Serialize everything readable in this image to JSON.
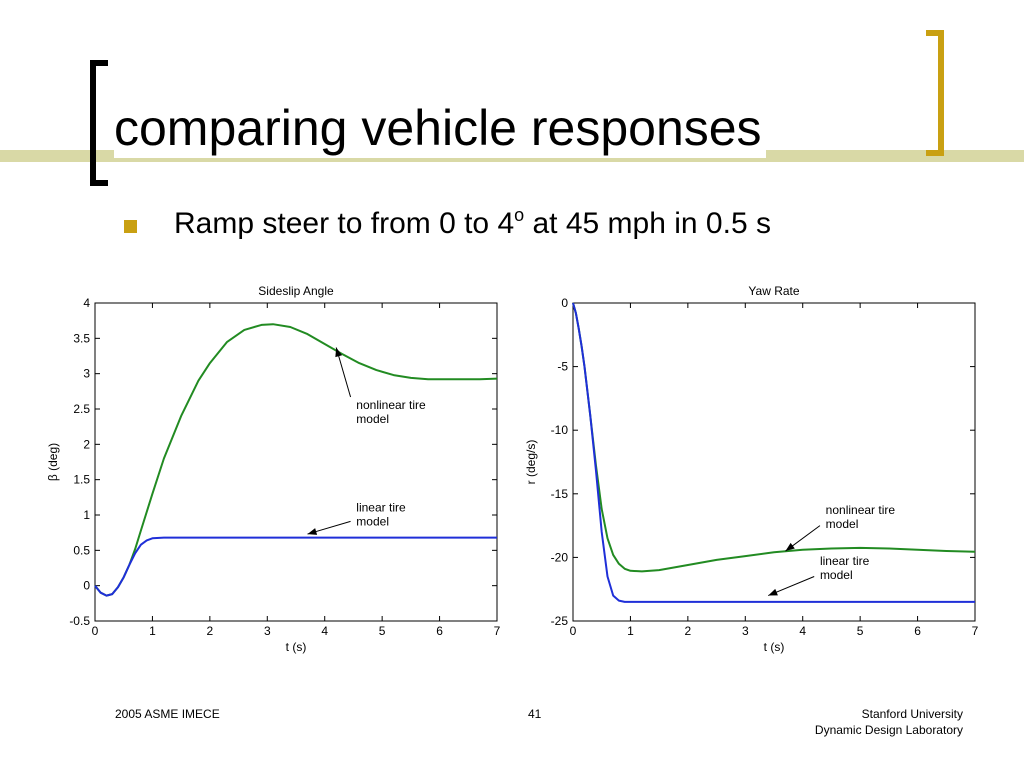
{
  "slide": {
    "title": "comparing vehicle responses",
    "bullet": {
      "text_before": "Ramp steer to from 0 to 4",
      "superscript": "o",
      "text_after": " at 45 mph in 0.5 s"
    },
    "footer": {
      "left": "2005 ASME IMECE",
      "center": "41",
      "right_line1": "Stanford University",
      "right_line2": "Dynamic Design Laboratory"
    },
    "colors": {
      "accent_gold": "#c9a012",
      "title_bar": "#d9d9a6"
    }
  },
  "chart_data": [
    {
      "type": "line",
      "title": "Sideslip Angle",
      "xlabel": "t (s)",
      "ylabel": "β (deg)",
      "xlim": [
        0,
        7
      ],
      "ylim": [
        -0.5,
        4
      ],
      "xticks": [
        "0",
        "1",
        "2",
        "3",
        "4",
        "5",
        "6",
        "7"
      ],
      "yticks": [
        "-0.5",
        "0",
        "0.5",
        "1",
        "1.5",
        "2",
        "2.5",
        "3",
        "3.5",
        "4"
      ],
      "grid": false,
      "series": [
        {
          "color": "#228b22",
          "x": [
            0,
            0.1,
            0.2,
            0.3,
            0.4,
            0.5,
            0.6,
            0.7,
            0.8,
            1.0,
            1.2,
            1.5,
            1.8,
            2.0,
            2.3,
            2.6,
            2.9,
            3.1,
            3.4,
            3.7,
            4.0,
            4.3,
            4.6,
            4.9,
            5.2,
            5.5,
            5.8,
            6.1,
            6.4,
            6.7,
            7.0
          ],
          "y": [
            0,
            -0.1,
            -0.14,
            -0.12,
            -0.02,
            0.12,
            0.3,
            0.52,
            0.78,
            1.3,
            1.8,
            2.4,
            2.9,
            3.15,
            3.45,
            3.62,
            3.69,
            3.7,
            3.66,
            3.56,
            3.42,
            3.28,
            3.15,
            3.05,
            2.98,
            2.94,
            2.92,
            2.92,
            2.92,
            2.92,
            2.93
          ]
        },
        {
          "color": "#1f2fd8",
          "x": [
            0,
            0.1,
            0.2,
            0.3,
            0.4,
            0.5,
            0.6,
            0.7,
            0.8,
            0.9,
            1.0,
            1.2,
            1.5,
            2.0,
            3.0,
            4.0,
            5.0,
            6.0,
            7.0
          ],
          "y": [
            0,
            -0.1,
            -0.14,
            -0.12,
            -0.02,
            0.12,
            0.3,
            0.46,
            0.58,
            0.64,
            0.67,
            0.68,
            0.68,
            0.68,
            0.68,
            0.68,
            0.68,
            0.68,
            0.68
          ]
        }
      ],
      "annotations": [
        {
          "text": [
            "nonlinear tire",
            "model"
          ],
          "text_x": 4.55,
          "text_y": 2.5,
          "arrow_from": [
            4.45,
            2.67
          ],
          "arrow_to": [
            4.2,
            3.37
          ]
        },
        {
          "text": [
            "linear tire",
            "model"
          ],
          "text_x": 4.55,
          "text_y": 1.05,
          "arrow_from": [
            4.45,
            0.91
          ],
          "arrow_to": [
            3.7,
            0.73
          ]
        }
      ]
    },
    {
      "type": "line",
      "title": "Yaw Rate",
      "xlabel": "t (s)",
      "ylabel": "r (deg/s)",
      "xlim": [
        0,
        7
      ],
      "ylim": [
        -25,
        0
      ],
      "xticks": [
        "0",
        "1",
        "2",
        "3",
        "4",
        "5",
        "6",
        "7"
      ],
      "yticks": [
        "-25",
        "-20",
        "-15",
        "-10",
        "-5",
        "0"
      ],
      "grid": false,
      "series": [
        {
          "color": "#228b22",
          "x": [
            0,
            0.05,
            0.1,
            0.15,
            0.2,
            0.3,
            0.4,
            0.5,
            0.6,
            0.7,
            0.8,
            0.9,
            1.0,
            1.2,
            1.5,
            2.0,
            2.5,
            3.0,
            3.5,
            4.0,
            4.5,
            5.0,
            5.5,
            6.0,
            6.5,
            7.0
          ],
          "y": [
            0,
            -0.8,
            -2.0,
            -3.4,
            -5.0,
            -8.8,
            -12.8,
            -16.2,
            -18.5,
            -19.8,
            -20.5,
            -20.9,
            -21.05,
            -21.1,
            -21.0,
            -20.6,
            -20.2,
            -19.9,
            -19.6,
            -19.4,
            -19.3,
            -19.25,
            -19.3,
            -19.4,
            -19.5,
            -19.55
          ]
        },
        {
          "color": "#1f2fd8",
          "x": [
            0,
            0.05,
            0.1,
            0.15,
            0.2,
            0.3,
            0.4,
            0.5,
            0.6,
            0.7,
            0.8,
            0.9,
            1.0,
            1.5,
            2.0,
            3.0,
            4.0,
            5.0,
            6.0,
            7.0
          ],
          "y": [
            0,
            -0.8,
            -2.0,
            -3.4,
            -5.0,
            -8.8,
            -13.2,
            -18.0,
            -21.5,
            -23.0,
            -23.4,
            -23.5,
            -23.5,
            -23.5,
            -23.5,
            -23.5,
            -23.5,
            -23.5,
            -23.5,
            -23.5
          ]
        }
      ],
      "annotations": [
        {
          "text": [
            "nonlinear tire",
            "model"
          ],
          "text_x": 4.4,
          "text_y": -16.6,
          "arrow_from": [
            4.3,
            -17.5
          ],
          "arrow_to": [
            3.7,
            -19.5
          ]
        },
        {
          "text": [
            "linear tire",
            "model"
          ],
          "text_x": 4.3,
          "text_y": -20.6,
          "arrow_from": [
            4.2,
            -21.5
          ],
          "arrow_to": [
            3.4,
            -23.0
          ]
        }
      ]
    }
  ]
}
